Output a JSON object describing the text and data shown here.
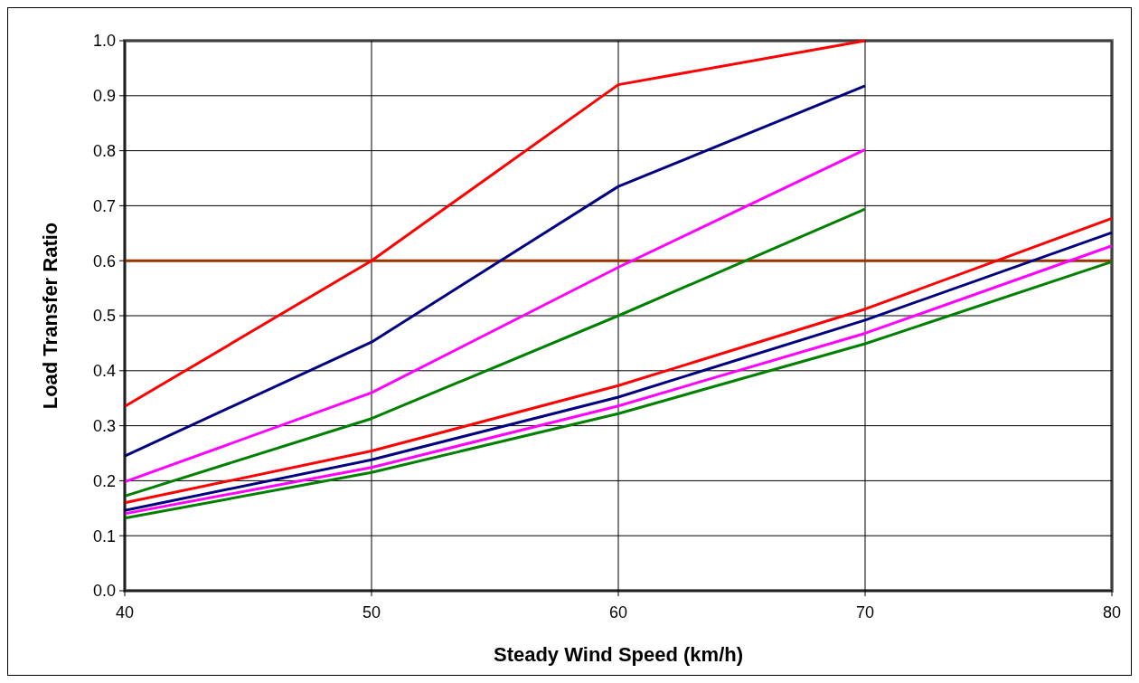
{
  "chart_data": {
    "type": "line",
    "xlabel": "Steady Wind Speed (km/h)",
    "ylabel": "Load Transfer Ratio",
    "x": [
      40,
      50,
      60,
      70,
      80
    ],
    "series": [
      {
        "color": "#ff0000",
        "values": [
          0.335,
          0.6,
          0.92,
          1.0,
          null
        ]
      },
      {
        "color": "#000080",
        "values": [
          0.245,
          0.452,
          0.735,
          0.918,
          null
        ]
      },
      {
        "color": "#ff00ff",
        "values": [
          0.198,
          0.36,
          0.588,
          0.802,
          null
        ]
      },
      {
        "color": "#008000",
        "values": [
          0.172,
          0.313,
          0.5,
          0.694,
          null
        ]
      },
      {
        "color": "#ff0000",
        "values": [
          0.16,
          0.254,
          0.373,
          0.512,
          0.677
        ]
      },
      {
        "color": "#000080",
        "values": [
          0.146,
          0.238,
          0.352,
          0.492,
          0.651
        ]
      },
      {
        "color": "#ff00ff",
        "values": [
          0.14,
          0.224,
          0.336,
          0.468,
          0.627
        ]
      },
      {
        "color": "#008000",
        "values": [
          0.132,
          0.215,
          0.322,
          0.449,
          0.598
        ]
      }
    ],
    "ref_lines": [
      {
        "axis": "y",
        "value": 0.6,
        "color": "#993300"
      }
    ],
    "xlim": [
      40,
      80
    ],
    "xticks": [
      40,
      50,
      60,
      70,
      80
    ],
    "ylim": [
      0,
      1
    ],
    "yticks": [
      {
        "value": 0,
        "label": "0.0"
      },
      {
        "value": 0.1,
        "label": "0.1"
      },
      {
        "value": 0.2,
        "label": "0.2"
      },
      {
        "value": 0.3,
        "label": "0.3"
      },
      {
        "value": 0.4,
        "label": "0.4"
      },
      {
        "value": 0.5,
        "label": "0.5"
      },
      {
        "value": 0.6,
        "label": "0.6"
      },
      {
        "value": 0.7,
        "label": "0.7"
      },
      {
        "value": 0.8,
        "label": "0.8"
      },
      {
        "value": 0.9,
        "label": "0.9"
      },
      {
        "value": 1,
        "label": "1.0"
      }
    ],
    "grid": true,
    "marker": "none",
    "line_style": "solid"
  }
}
